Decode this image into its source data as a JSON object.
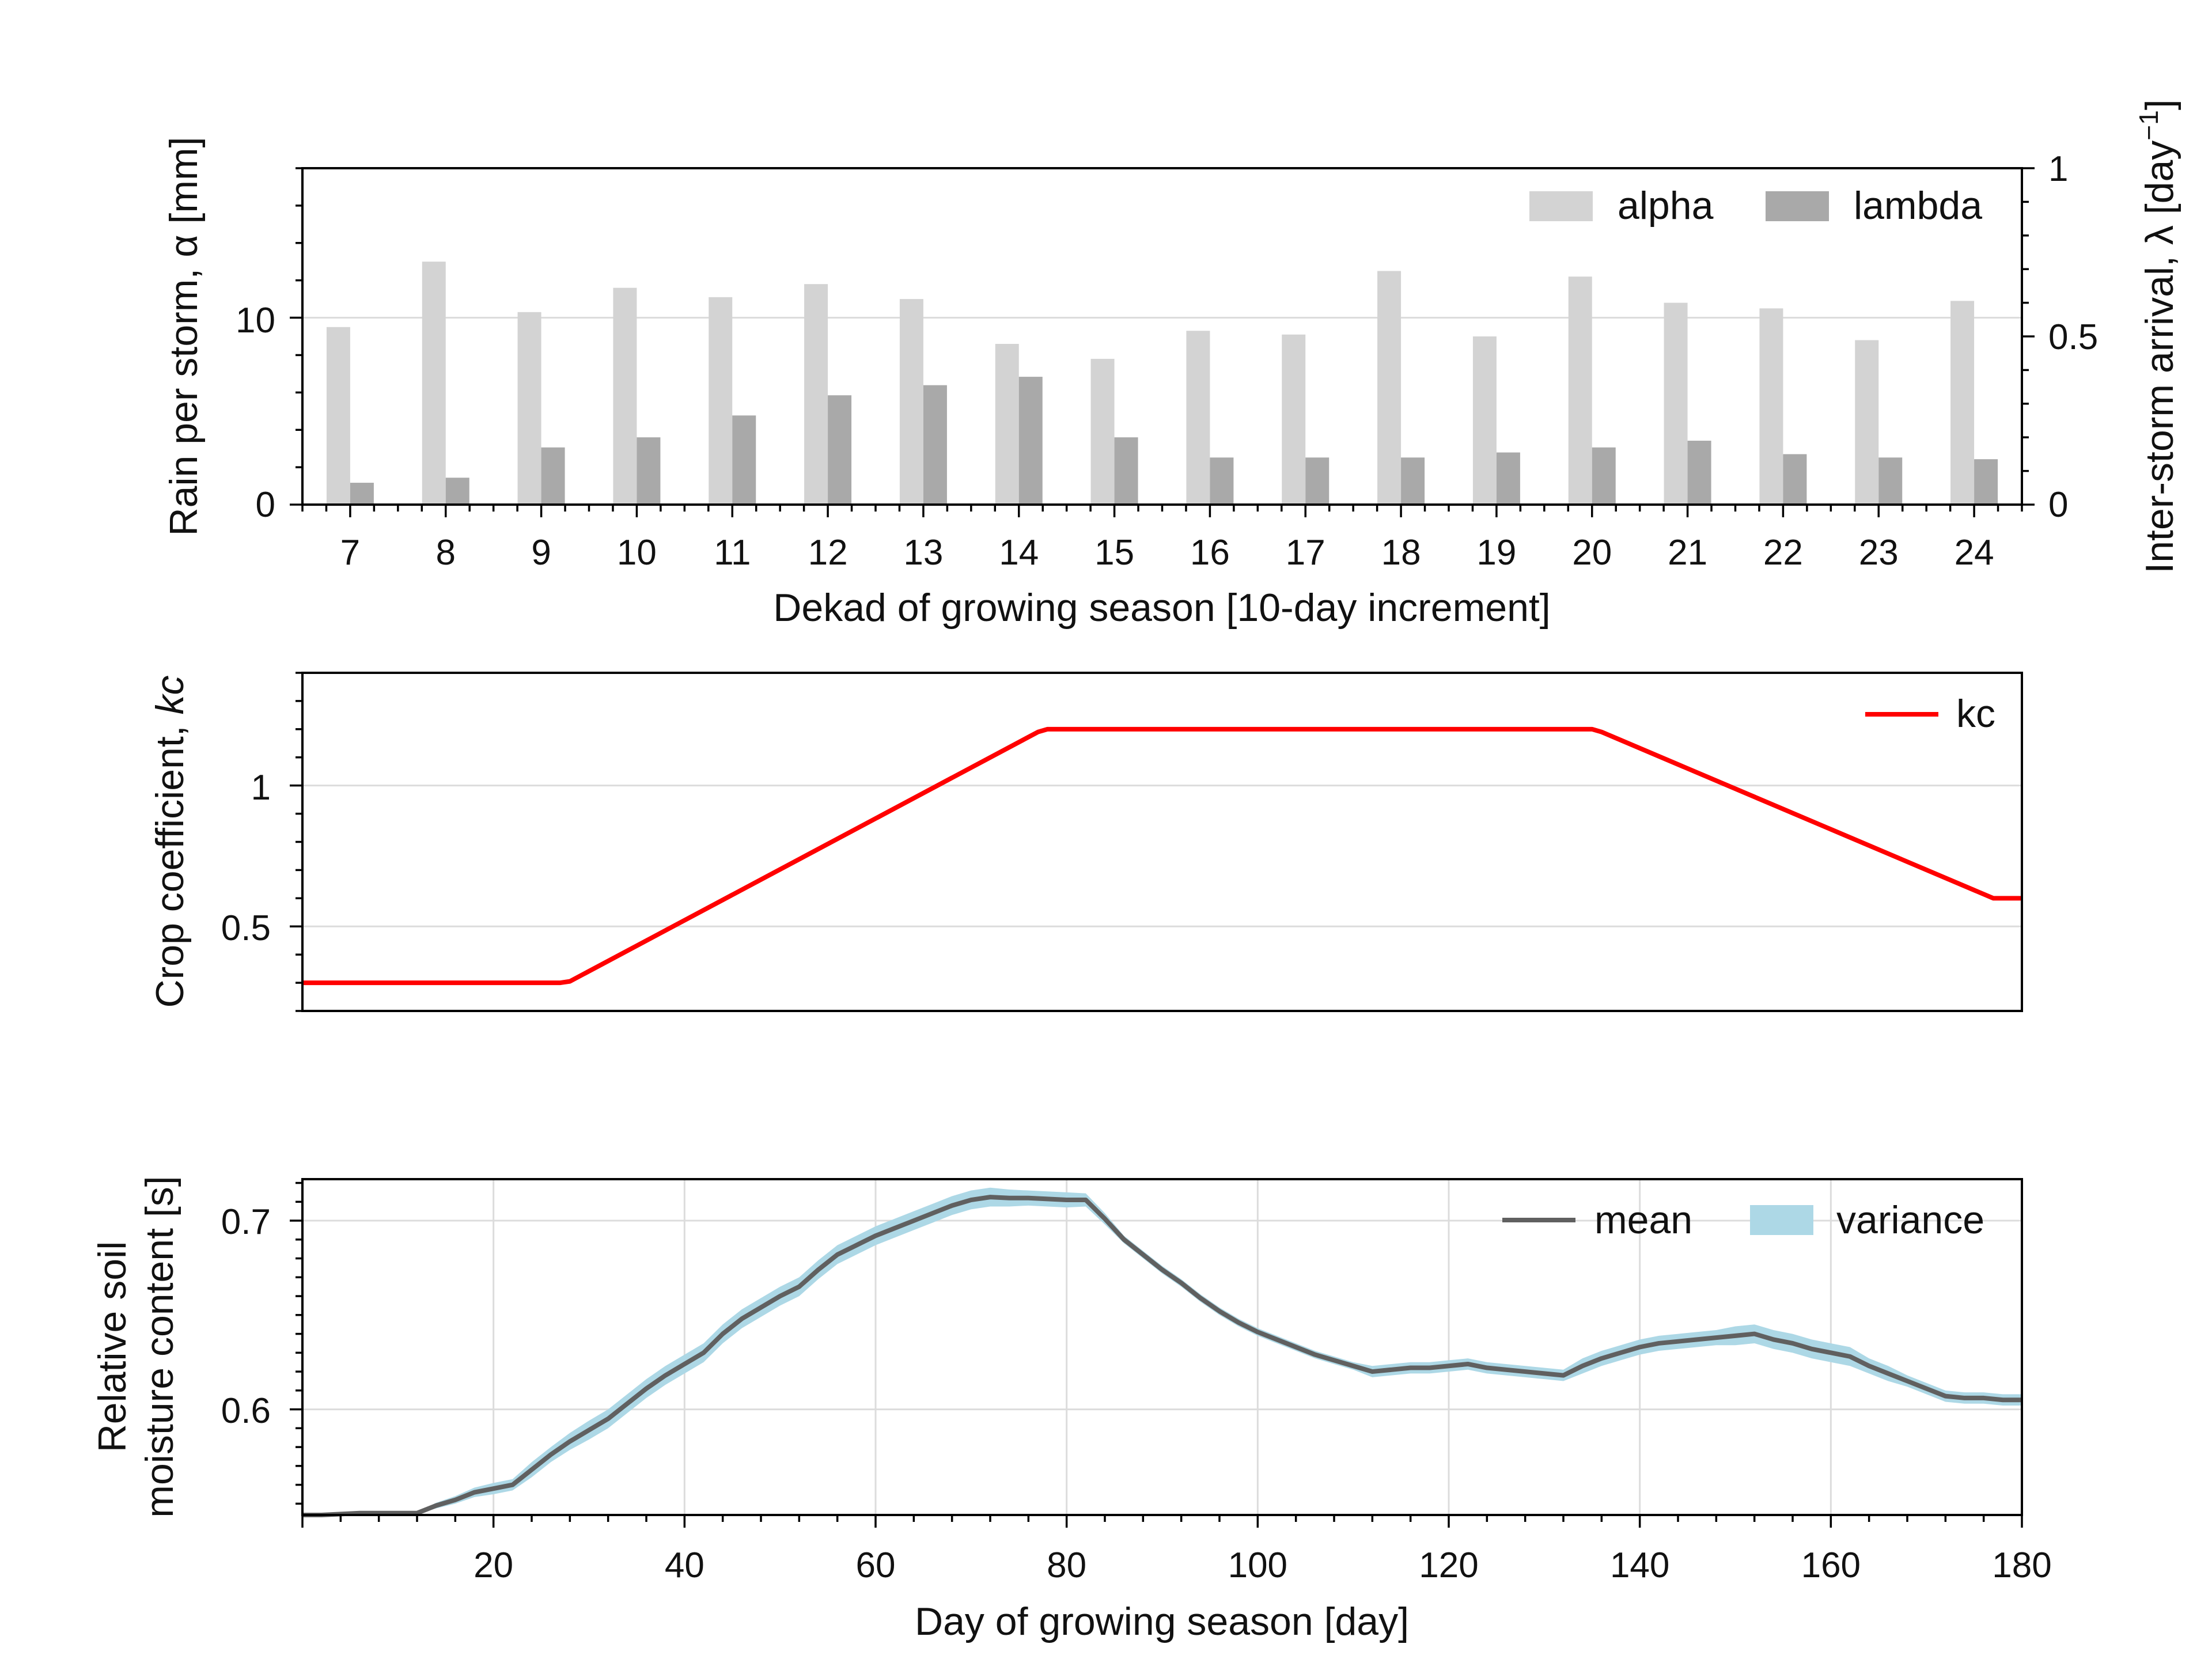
{
  "chart_data": [
    {
      "type": "bar",
      "categories": [
        "7",
        "8",
        "9",
        "10",
        "11",
        "12",
        "13",
        "14",
        "15",
        "16",
        "17",
        "18",
        "19",
        "20",
        "21",
        "22",
        "23",
        "24"
      ],
      "series": [
        {
          "name": "alpha",
          "axis": "left",
          "color": "#d3d3d3",
          "values": [
            9.5,
            13.0,
            10.3,
            11.6,
            11.1,
            11.8,
            11.0,
            8.6,
            7.8,
            9.3,
            9.1,
            12.5,
            9.0,
            12.2,
            10.8,
            10.5,
            8.8,
            10.9
          ]
        },
        {
          "name": "lambda",
          "axis": "right",
          "color": "#a9a9a9",
          "values": [
            0.065,
            0.08,
            0.17,
            0.2,
            0.265,
            0.325,
            0.355,
            0.38,
            0.2,
            0.14,
            0.14,
            0.14,
            0.155,
            0.17,
            0.19,
            0.15,
            0.14,
            0.135
          ]
        }
      ],
      "xlabel": "Dekad of growing season [10-day increment]",
      "ylabel": "Rain per storm, α [mm]",
      "ylabel_right_text": "Inter-storm arrival, λ [day",
      "ylabel_right_sup": "−1",
      "ylabel_right_close": "]",
      "ylim": [
        0,
        18
      ],
      "ylim_right": [
        0,
        1
      ],
      "yticks": [
        "0",
        "10"
      ],
      "yticks_right": [
        "0",
        "0.5",
        "1"
      ],
      "grid": true,
      "legend": "top-right"
    },
    {
      "type": "line",
      "series": [
        {
          "name": "kc",
          "color": "#ff0000",
          "x": [
            0,
            27,
            28,
            77,
            78,
            135,
            136,
            177,
            180
          ],
          "y": [
            0.3,
            0.3,
            0.305,
            1.19,
            1.2,
            1.2,
            1.19,
            0.6,
            0.6
          ]
        }
      ],
      "ylabel_prefix": "Crop coefficient, ",
      "ylabel_var": "kc",
      "xlim": [
        0,
        180
      ],
      "ylim": [
        0.2,
        1.4
      ],
      "yticks": [
        "0.5",
        "1"
      ],
      "grid": true,
      "legend": "top-right"
    },
    {
      "type": "area",
      "x": [
        0,
        2,
        4,
        6,
        8,
        10,
        12,
        14,
        16,
        18,
        20,
        22,
        24,
        26,
        28,
        30,
        32,
        34,
        36,
        38,
        40,
        42,
        44,
        46,
        48,
        50,
        52,
        54,
        56,
        58,
        60,
        62,
        64,
        66,
        68,
        70,
        72,
        74,
        76,
        78,
        80,
        82,
        84,
        86,
        88,
        90,
        92,
        94,
        96,
        98,
        100,
        102,
        104,
        106,
        108,
        110,
        112,
        114,
        116,
        118,
        120,
        122,
        124,
        126,
        128,
        130,
        132,
        134,
        136,
        138,
        140,
        142,
        144,
        146,
        148,
        150,
        152,
        154,
        156,
        158,
        160,
        162,
        164,
        166,
        168,
        170,
        172,
        174,
        176,
        178,
        180
      ],
      "series": [
        {
          "name": "mean",
          "color": "#606060",
          "values": [
            0.544,
            0.544,
            0.5445,
            0.545,
            0.545,
            0.545,
            0.545,
            0.549,
            0.552,
            0.556,
            0.558,
            0.56,
            0.568,
            0.576,
            0.583,
            0.589,
            0.595,
            0.603,
            0.611,
            0.618,
            0.624,
            0.63,
            0.64,
            0.648,
            0.654,
            0.66,
            0.665,
            0.674,
            0.682,
            0.687,
            0.692,
            0.696,
            0.7,
            0.704,
            0.708,
            0.711,
            0.7125,
            0.712,
            0.712,
            0.7115,
            0.711,
            0.711,
            0.701,
            0.69,
            0.682,
            0.674,
            0.667,
            0.659,
            0.652,
            0.646,
            0.641,
            0.637,
            0.633,
            0.629,
            0.626,
            0.623,
            0.62,
            0.621,
            0.622,
            0.622,
            0.623,
            0.624,
            0.622,
            0.621,
            0.62,
            0.619,
            0.618,
            0.623,
            0.627,
            0.63,
            0.633,
            0.635,
            0.636,
            0.637,
            0.638,
            0.639,
            0.64,
            0.637,
            0.635,
            0.632,
            0.63,
            0.628,
            0.623,
            0.619,
            0.615,
            0.611,
            0.607,
            0.606,
            0.606,
            0.605,
            0.605
          ]
        },
        {
          "name": "variance",
          "color": "#add8e6",
          "values": [
            0.0005,
            0.0005,
            0.0005,
            0.0005,
            0.0005,
            0.0005,
            0.0005,
            0.0015,
            0.002,
            0.0025,
            0.003,
            0.003,
            0.004,
            0.004,
            0.0045,
            0.005,
            0.005,
            0.005,
            0.005,
            0.005,
            0.005,
            0.005,
            0.005,
            0.005,
            0.005,
            0.005,
            0.005,
            0.005,
            0.005,
            0.005,
            0.005,
            0.005,
            0.005,
            0.005,
            0.005,
            0.005,
            0.005,
            0.0045,
            0.004,
            0.004,
            0.004,
            0.0035,
            0.003,
            0.002,
            0.002,
            0.002,
            0.002,
            0.002,
            0.002,
            0.002,
            0.002,
            0.002,
            0.002,
            0.002,
            0.002,
            0.002,
            0.003,
            0.003,
            0.003,
            0.003,
            0.003,
            0.003,
            0.003,
            0.003,
            0.003,
            0.003,
            0.003,
            0.004,
            0.004,
            0.004,
            0.004,
            0.004,
            0.004,
            0.004,
            0.004,
            0.005,
            0.005,
            0.005,
            0.005,
            0.005,
            0.005,
            0.005,
            0.004,
            0.004,
            0.003,
            0.003,
            0.003,
            0.003,
            0.003,
            0.003,
            0.003
          ]
        }
      ],
      "xlabel": "Day of growing season [day]",
      "ylabel_line1": "Relative soil",
      "ylabel_line2": "moisture content [s]",
      "xlim": [
        0,
        180
      ],
      "xticks": [
        "20",
        "40",
        "60",
        "80",
        "100",
        "120",
        "140",
        "160",
        "180"
      ],
      "ylim": [
        0.544,
        0.722
      ],
      "yticks": [
        "0.6",
        "0.7"
      ],
      "grid": true,
      "legend": "top-right"
    }
  ]
}
